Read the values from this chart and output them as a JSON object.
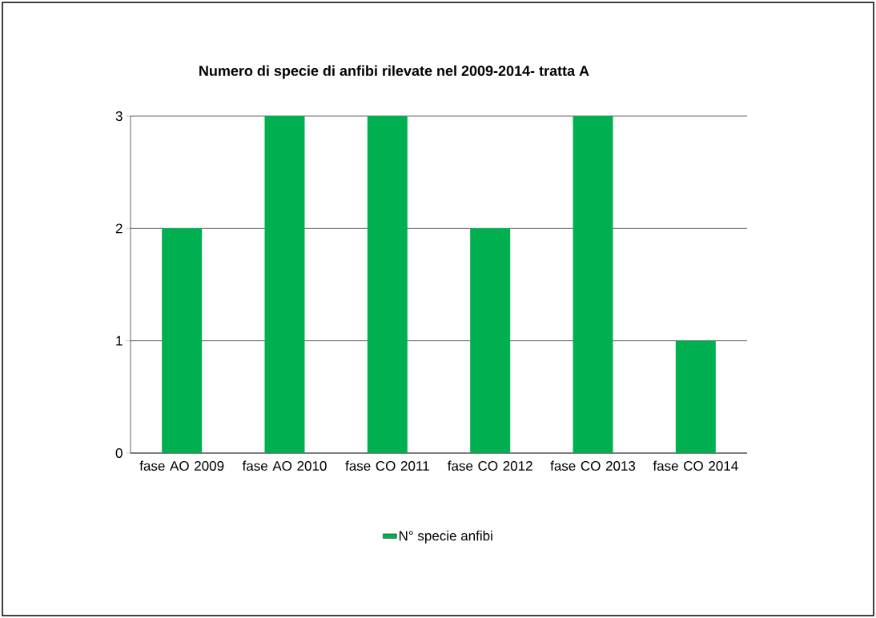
{
  "chart_data": {
    "type": "bar",
    "title": "Numero di specie di anfibi rilevate nel  2009-2014- tratta A",
    "categories": [
      "fase AO 2009",
      "fase AO 2010",
      "fase CO 2011",
      "fase CO 2012",
      "fase CO 2013",
      "fase CO 2014"
    ],
    "series": [
      {
        "name": "N° specie anfibi",
        "color": "#00b050",
        "values": [
          2,
          3,
          3,
          2,
          3,
          1
        ]
      }
    ],
    "ylim": [
      0,
      3
    ],
    "yticks": [
      0,
      1,
      2,
      3
    ],
    "grid": "y",
    "legend": "bottom"
  }
}
